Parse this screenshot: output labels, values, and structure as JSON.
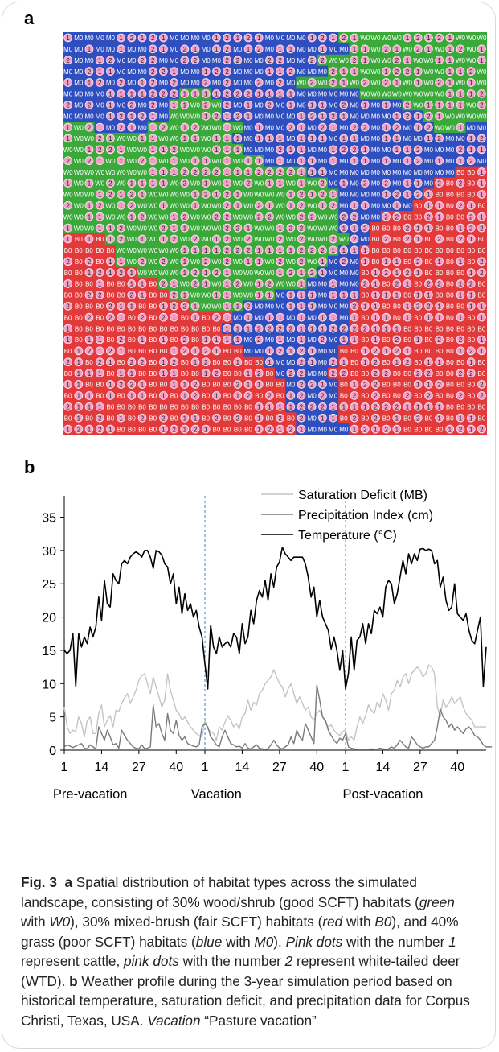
{
  "panel_a": {
    "label": "a",
    "grid": {
      "cols": 40,
      "rows": 36,
      "colors": {
        "W": "#3aa93a",
        "M": "#2f4fbf",
        "B": "#e23a3a"
      },
      "cell_text": {
        "W": "W0",
        "M": "M0",
        "B": "B0"
      },
      "dot_color": "#f2a0c8",
      "map": [
        "MMMMMMMMMMMMMMMMMMMMMMMMMMWWWWWWWWWWWWWW",
        "MMMMMMMMMMMMMMMMMMMMMMMMMMMWWWWWWWWWWWWW",
        "MMMMMMMMMMMMMMMMMMMMMMMMWWWWWWWWWWWWWWWW",
        "MMMMMMMMMMMMMMMMMMMMMMMMMWWWWWWWWWWWWWWW",
        "MMMMMMMMMMMMMMMMMMMMMMWWWWWWWWWWWWWWWWWW",
        "MMMMMMMMMMMWWWMMMMMMMMMMMMMMWWWWWWWWWWWW",
        "MMMMMMMMMMWWWWWMMMMMMMMMMMMMMMMMWWWWWWWW",
        "MMMMMMMMMMWWWWWMMMMMMMMMMMMMMMMMMMWWWWWW",
        "WWWMMMMMWWWWWWWWWMMMMMMMMMMMMMMMMMMWWWMM",
        "WWWWWWWWWWWWWWWWMMMMMMMMMMMMMMMMMMMMMMMM",
        "WWWWWWWWWWWWWWWWWMMMMMMMMMMMMMMMMMMMMMMM",
        "WWWWWWWWWWWWWWWWWWWMMMMMMMMMMMMMMMMMMMMM",
        "WWWWWWWWWWWWWWWWWWWWWWWMMMMMMMMMMMMMMBBB",
        "WWWWWWWWWWWWWWWWWWWWWWWWWMMMMMMMMMMBBBBB",
        "WWWWWWWWWWWWWWWWWWWWWWWWWWMMMMMMMMBBBBBB",
        "WWWWWWWWWWWWWWWWWWWWWWWWWWMMMMMMMBBBBBBB",
        "WWWWWWWWWWWWWWWWWWWWWWWWWWMMMMBBBBBBBBBB",
        "WWWWWWWWWWWWWWWWWWWWWWWWWWMMMBBBBBBBBBBB",
        "BBBBWWWWWWWWWWWWWWWWWWWWWWWMMBBBBBBBBBBB",
        "BBBBBWWWWWWWWWWWWWWWWWWWWWMMBBBBBBBBBBBB",
        "BBBBBWWWWWWWWWWWWWWWWWWWWMMMBBBBBBBBBBBB",
        "BBBBBBBWWWWWWWWWWWWWWWWWMMMMBBBBBBBBBBBB",
        "BBBBBBBBBWWWWWWWWWWWWWWMMMMMBBBBBBBBBBBB",
        "BBBBBBBBBBWWWWWWWWWWMMMMMMMMBBBBBBBBBBBB",
        "BBBBBBBBBBBBWWWWWMMMMMMMMMMBBBBBBBBBBBBB",
        "BBBBBBBBBBBBBBBBMMMMMMMMMMMBBBBBBBBBBBBB",
        "BBBBBBBBBBBBBBBMMMMMMMMMMMMBBBBBBBBBBBBB",
        "BBBBBBBBBBBBBBBBMMMMMMMMMMMBBBBBBBBBBBBB",
        "BBBBBBBBBBBBBBBBBMMMMMMMMMBBBBBBBBBBBBBB",
        "BBBBBBBBBBBBBBBBBBBMMMMMMMBBBBBBBBBBBBBB",
        "BBBBBBBBBBBBBBBBBBBBMMMMMBBBBBBBBBBBBBBB",
        "BBBBBBBBBBBBBBBBBBBBBMMMMMBBBBBBBBBBBBBB",
        "BBBBBBBBBBBBBBBBBBBBBMMMMMBBBBBBBBBBBBBB",
        "BBBBBBBBBBBBBBBBBBBBBMMMMMBBBBBBBBBBBBBB",
        "BBBBBBBBBBBBBBBBBBBBBBMMMMBBBBBBBBBBBBBB",
        "BBBBBBBBBBBBBBBBBBBBBBMMMMMBBBBBBBBBBBBB"
      ]
    }
  },
  "panel_b": {
    "label": "b"
  },
  "chart_data": {
    "type": "line",
    "title": "",
    "xlabel": "",
    "ylabel": "",
    "ylim": [
      0,
      37
    ],
    "yticks": [
      "0",
      "5",
      "10",
      "15",
      "20",
      "25",
      "30",
      "35"
    ],
    "xticks": [
      {
        "x": 1,
        "label": "1"
      },
      {
        "x": 14,
        "label": "14"
      },
      {
        "x": 27,
        "label": "27"
      },
      {
        "x": 40,
        "label": "40"
      },
      {
        "x": 50,
        "label": "1"
      },
      {
        "x": 63,
        "label": "14"
      },
      {
        "x": 76,
        "label": "27"
      },
      {
        "x": 89,
        "label": "40"
      },
      {
        "x": 99,
        "label": "1"
      },
      {
        "x": 112,
        "label": "14"
      },
      {
        "x": 125,
        "label": "27"
      },
      {
        "x": 138,
        "label": "40"
      }
    ],
    "xlim": [
      1,
      148
    ],
    "phases": [
      {
        "label": "Pre-vacation",
        "x": 10
      },
      {
        "label": "Vacation",
        "x": 54
      },
      {
        "label": "Post-vacation",
        "x": 112
      }
    ],
    "phase_boundaries": [
      50,
      99
    ],
    "legend": "top-right",
    "series": [
      {
        "name": "Saturation Deficit (MB)",
        "color": "#c4c4c4",
        "values": [
          6.5,
          3.5,
          2.5,
          3.0,
          2.8,
          5.0,
          4.0,
          2.0,
          4.5,
          5.0,
          2.5,
          2.5,
          5.5,
          6.8,
          3.5,
          4.5,
          5.2,
          3.5,
          6.0,
          5.8,
          7.0,
          7.8,
          8.5,
          7.0,
          8.0,
          9.0,
          10.5,
          11.2,
          11.5,
          10.0,
          8.5,
          11.0,
          9.5,
          8.0,
          6.5,
          7.5,
          11.5,
          9.0,
          7.5,
          6.0,
          5.5,
          4.5,
          5.0,
          4.2,
          3.5,
          3.0,
          2.5,
          2.2,
          2.0,
          4.5,
          3.2,
          2.8,
          2.5,
          1.5,
          3.5,
          3.0,
          4.2,
          5.2,
          4.5,
          3.5,
          4.0,
          3.2,
          5.0,
          5.5,
          7.5,
          6.0,
          7.2,
          6.8,
          8.5,
          9.0,
          10.0,
          10.5,
          11.0,
          12.1,
          11.0,
          10.0,
          9.5,
          8.0,
          9.2,
          10.0,
          8.5,
          7.0,
          8.0,
          7.0,
          6.0,
          6.5,
          5.0,
          4.5,
          5.5,
          6.0,
          5.0,
          4.2,
          3.5,
          3.8,
          3.0,
          2.5,
          2.2,
          2.8,
          3.0,
          1.5,
          2.0,
          1.5,
          3.5,
          5.0,
          4.0,
          5.2,
          6.8,
          6.0,
          5.5,
          7.2,
          6.5,
          8.5,
          7.5,
          6.0,
          8.5,
          9.0,
          10.5,
          9.5,
          11.0,
          11.5,
          10.0,
          11.5,
          12.0,
          12.5,
          12.0,
          11.0,
          11.5,
          12.8,
          12.5,
          11.5,
          6.5,
          5.0,
          7.5,
          6.5,
          7.0,
          8.0,
          7.0,
          7.5,
          8.0,
          6.5,
          5.5,
          5.0,
          4.5,
          3.5,
          3.5,
          3.5,
          3.5,
          3.5
        ]
      },
      {
        "name": "Precipitation Index (cm)",
        "color": "#7a7a7a",
        "values": [
          0.5,
          0.8,
          0.6,
          0.4,
          0.6,
          0.8,
          1.0,
          0.3,
          0.2,
          0.8,
          0.5,
          0.2,
          3.5,
          2.5,
          1.5,
          3.0,
          2.0,
          0.8,
          1.0,
          0.3,
          3.0,
          2.2,
          1.5,
          1.0,
          0.5,
          0.3,
          0.2,
          0.8,
          0.2,
          0.3,
          0.5,
          6.8,
          3.5,
          4.0,
          2.5,
          1.5,
          5.5,
          3.0,
          2.5,
          4.5,
          2.2,
          1.5,
          2.0,
          1.0,
          0.8,
          0.6,
          0.5,
          0.8,
          3.5,
          4.0,
          3.5,
          2.0,
          1.5,
          0.8,
          0.5,
          2.0,
          3.0,
          2.0,
          1.0,
          0.8,
          0.5,
          0.6,
          0.3,
          1.0,
          0.3,
          0.2,
          0.5,
          0.8,
          0.3,
          0.2,
          0.1,
          0.2,
          0.8,
          1.5,
          0.8,
          0.3,
          0.2,
          0.5,
          0.8,
          2.0,
          1.0,
          3.0,
          2.0,
          1.5,
          4.0,
          3.0,
          2.0,
          1.0,
          9.8,
          7.5,
          5.0,
          4.5,
          3.0,
          2.2,
          1.5,
          1.0,
          1.8,
          1.5,
          2.5,
          0.5,
          0.3,
          0.2,
          0.1,
          0.1,
          0.1,
          0.1,
          0.1,
          0.2,
          0.1,
          0.1,
          0.3,
          0.2,
          0.1,
          0.2,
          0.5,
          0.3,
          0.8,
          1.5,
          1.0,
          0.5,
          0.3,
          2.0,
          1.5,
          0.8,
          0.5,
          0.3,
          0.5,
          0.5,
          1.0,
          1.5,
          3.5,
          6.2,
          5.0,
          4.5,
          3.5,
          4.0,
          3.0,
          3.5,
          3.0,
          2.5,
          3.2,
          3.5,
          3.0,
          2.2,
          2.0,
          1.5,
          0.8,
          0.5,
          0.5,
          0.5
        ]
      },
      {
        "name": "Temperature (°C)",
        "color": "#000000",
        "values": [
          15,
          14.5,
          15,
          17.5,
          9.6,
          17.5,
          15.5,
          17,
          16,
          18.5,
          17,
          18.5,
          23,
          19.5,
          25.5,
          22,
          21.5,
          26.5,
          25.5,
          25,
          28,
          28.5,
          28,
          29,
          29.5,
          29.8,
          29.5,
          29,
          30,
          30,
          29,
          27.3,
          30,
          29.8,
          29.3,
          28,
          27.5,
          25,
          26.5,
          22,
          24.5,
          20.5,
          23.5,
          21,
          22,
          20,
          21,
          18.5,
          17,
          13,
          9.2,
          18.8,
          15.5,
          14.5,
          17,
          15.5,
          16,
          16.3,
          15.5,
          17.5,
          17,
          14.5,
          19,
          16,
          17,
          21,
          19,
          22.5,
          24,
          23,
          25.5,
          22.5,
          26.5,
          24.5,
          27.5,
          28.3,
          30.5,
          29.5,
          29,
          28.5,
          29,
          29,
          29,
          29,
          28,
          26,
          23,
          24.5,
          20,
          22.5,
          20,
          19,
          18,
          15.2,
          17,
          15,
          12,
          15,
          9.2,
          11.5,
          17,
          12,
          16.5,
          17,
          19,
          16,
          19,
          17.5,
          21,
          20.5,
          21.5,
          20,
          24.5,
          25.5,
          25,
          22,
          23.5,
          26,
          28.5,
          26.5,
          29.5,
          28,
          29.5,
          28.5,
          30.2,
          30.3,
          30,
          30.2,
          30,
          28,
          28.5,
          24.5,
          26,
          22.5,
          21,
          21.5,
          25,
          20.5,
          20,
          19.5,
          20.5,
          18,
          16.5,
          16,
          18,
          20,
          9.6,
          15.5
        ]
      }
    ]
  },
  "caption": {
    "fig_label": "Fig. 3",
    "a": "a",
    "text_a1": " Spatial distribution of habitat types across the simulated landscape, consisting of 30% wood/shrub (good SCFT) habitats (",
    "green": "green",
    "with": " with ",
    "w0": "W0",
    "text_a2": "), 30% mixed-brush (fair SCFT) habitats (",
    "red": "red",
    "with2": " with ",
    "b0": "B0",
    "text_a3": "), and 40% grass (poor SCFT) habitats (",
    "blue": "blue",
    "with3": " with ",
    "m0": "M0",
    "text_a4": "). ",
    "pink_dots1": "Pink dots",
    "text_a5": " with the number ",
    "one": "1",
    "text_a6": " represent cattle, ",
    "pink_dots2": "pink dots",
    "text_a7": " with the number ",
    "two": "2",
    "text_a8": " represent white-tailed deer (WTD). ",
    "b": "b",
    "text_b1": " Weather profile during the 3-year simulation period based on historical temperature, saturation deficit, and precipitation data for Corpus Christi, Texas, USA. ",
    "vacation": "Vacation",
    "text_b2": " “Pasture vacation”"
  }
}
